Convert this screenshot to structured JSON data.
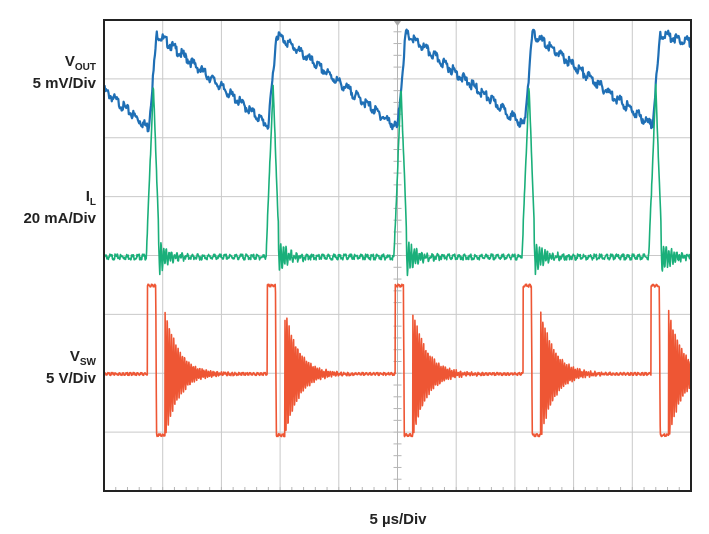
{
  "chart_data": {
    "type": "line",
    "title": "",
    "xlabel": "5 µs/Div",
    "x_unit": "µs",
    "x_range": [
      0,
      50
    ],
    "divisions": {
      "x": 10,
      "y": 8
    },
    "grid": true,
    "colors": {
      "vout": "#1f6fb5",
      "il": "#1aaf7a",
      "vsw": "#ee5634",
      "grid": "#c9c9c9",
      "frame": "#222222"
    },
    "channels": [
      {
        "name_main": "V",
        "name_sub": "OUT",
        "scale": "5 mV/Div",
        "color_key": "vout",
        "unit": "mV",
        "pulse_times": [
          3.8,
          14.0,
          25.0,
          35.8,
          46.7
        ],
        "pulse_minima": [
          -3.2,
          -3.0,
          -3.2,
          -3.0,
          -3.0
        ],
        "pulse_peaks": [
          4.8,
          4.8,
          4.8,
          4.8,
          4.8
        ],
        "start_level": 0.0,
        "end_level": 4.1
      },
      {
        "name_main": "I",
        "name_sub": "L",
        "scale": "20 mA/Div",
        "color_key": "il",
        "unit": "mA",
        "pulse_times": [
          4.2,
          14.4,
          25.3,
          36.2,
          47.0
        ],
        "baseline": 0,
        "peak": 58
      },
      {
        "name_main": "V",
        "name_sub": "SW",
        "scale": "5 V/Div",
        "color_key": "vsw",
        "unit": "V",
        "pulse_times": [
          3.7,
          13.9,
          24.8,
          35.7,
          46.6
        ],
        "baseline": 0,
        "high": 7.5,
        "low": -5.2
      }
    ]
  }
}
